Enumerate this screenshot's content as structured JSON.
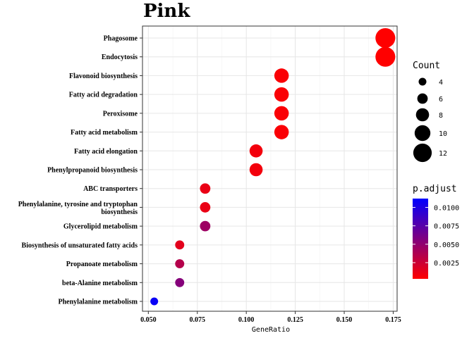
{
  "chart_data": {
    "type": "scatter",
    "title": "Pink",
    "xlabel": "GeneRatio",
    "ylabel": "",
    "xlim": [
      0.047,
      0.177
    ],
    "xticks": [
      0.05,
      0.075,
      0.1,
      0.125,
      0.15,
      0.175
    ],
    "xtick_labels": [
      "0.050",
      "0.075",
      "0.100",
      "0.125",
      "0.150",
      "0.175"
    ],
    "grid": true,
    "categories": [
      [
        "Phagosome"
      ],
      [
        "Endocytosis"
      ],
      [
        "Flavonoid biosynthesis"
      ],
      [
        "Fatty acid degradation"
      ],
      [
        "Peroxisome"
      ],
      [
        "Fatty acid metabolism"
      ],
      [
        "Fatty acid elongation"
      ],
      [
        "Phenylpropanoid biosynthesis"
      ],
      [
        "ABC transporters"
      ],
      [
        "Phenylalanine, tyrosine and tryptophan",
        "biosynthesis"
      ],
      [
        "Glycerolipid metabolism"
      ],
      [
        "Biosynthesis of unsaturated fatty acids"
      ],
      [
        "Propanoate metabolism"
      ],
      [
        "beta-Alanine metabolism"
      ],
      [
        "Phenylalanine metabolism"
      ]
    ],
    "points": [
      {
        "x": 0.171,
        "count": 13,
        "p_adjust": 0.0003
      },
      {
        "x": 0.171,
        "count": 13,
        "p_adjust": 0.0003
      },
      {
        "x": 0.118,
        "count": 9,
        "p_adjust": 0.0005
      },
      {
        "x": 0.118,
        "count": 9,
        "p_adjust": 0.0005
      },
      {
        "x": 0.118,
        "count": 9,
        "p_adjust": 0.0005
      },
      {
        "x": 0.118,
        "count": 9,
        "p_adjust": 0.0005
      },
      {
        "x": 0.105,
        "count": 8,
        "p_adjust": 0.0008
      },
      {
        "x": 0.105,
        "count": 8,
        "p_adjust": 0.0008
      },
      {
        "x": 0.079,
        "count": 6,
        "p_adjust": 0.0012
      },
      {
        "x": 0.079,
        "count": 6,
        "p_adjust": 0.0012
      },
      {
        "x": 0.079,
        "count": 6,
        "p_adjust": 0.0045
      },
      {
        "x": 0.066,
        "count": 5,
        "p_adjust": 0.0015
      },
      {
        "x": 0.066,
        "count": 5,
        "p_adjust": 0.0035
      },
      {
        "x": 0.066,
        "count": 5,
        "p_adjust": 0.0055
      },
      {
        "x": 0.053,
        "count": 4,
        "p_adjust": 0.0108
      }
    ],
    "legend_size": {
      "title": "Count",
      "values": [
        4,
        6,
        8,
        10,
        12
      ],
      "labels": [
        "4",
        "6",
        "8",
        "10",
        "12"
      ]
    },
    "legend_color": {
      "title": "p.adjust",
      "range": [
        0.0003,
        0.0112
      ],
      "ticks": [
        0.0025,
        0.005,
        0.0075,
        0.01
      ],
      "tick_labels": [
        "0.0025",
        "0.0050",
        "0.0075",
        "0.0100"
      ],
      "low_color": "#FF0000",
      "high_color": "#0000FF"
    },
    "legend_placement": "right"
  }
}
